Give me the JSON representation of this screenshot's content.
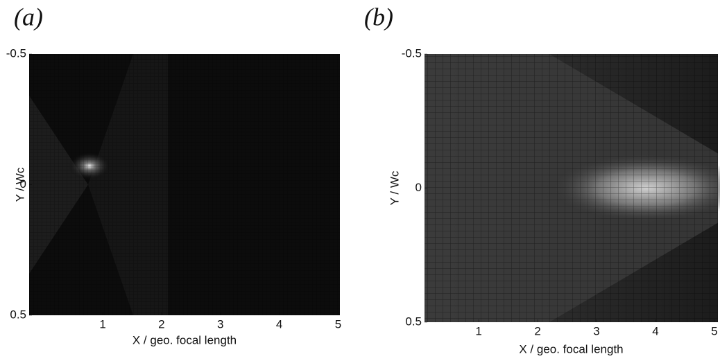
{
  "chart_data": [
    {
      "type": "heatmap",
      "title": "(a)",
      "xlabel": "X / geo. focal length",
      "ylabel": "Y / Wc",
      "xlim": [
        -0.25,
        5.03
      ],
      "ylim": [
        -0.5,
        0.5
      ],
      "xticks": [
        1,
        2,
        3,
        4,
        5
      ],
      "yticks": [
        -0.5,
        0,
        0.5
      ]
    },
    {
      "type": "heatmap",
      "title": "(b)",
      "xlabel": "X / geo. focal length",
      "ylabel": "Y / Wc",
      "xlim": [
        0.08,
        5.06
      ],
      "ylim": [
        -0.5,
        0.5
      ],
      "xticks": [
        1,
        2,
        3,
        4,
        5
      ],
      "yticks": [
        -0.5,
        0,
        0.5
      ]
    }
  ]
}
